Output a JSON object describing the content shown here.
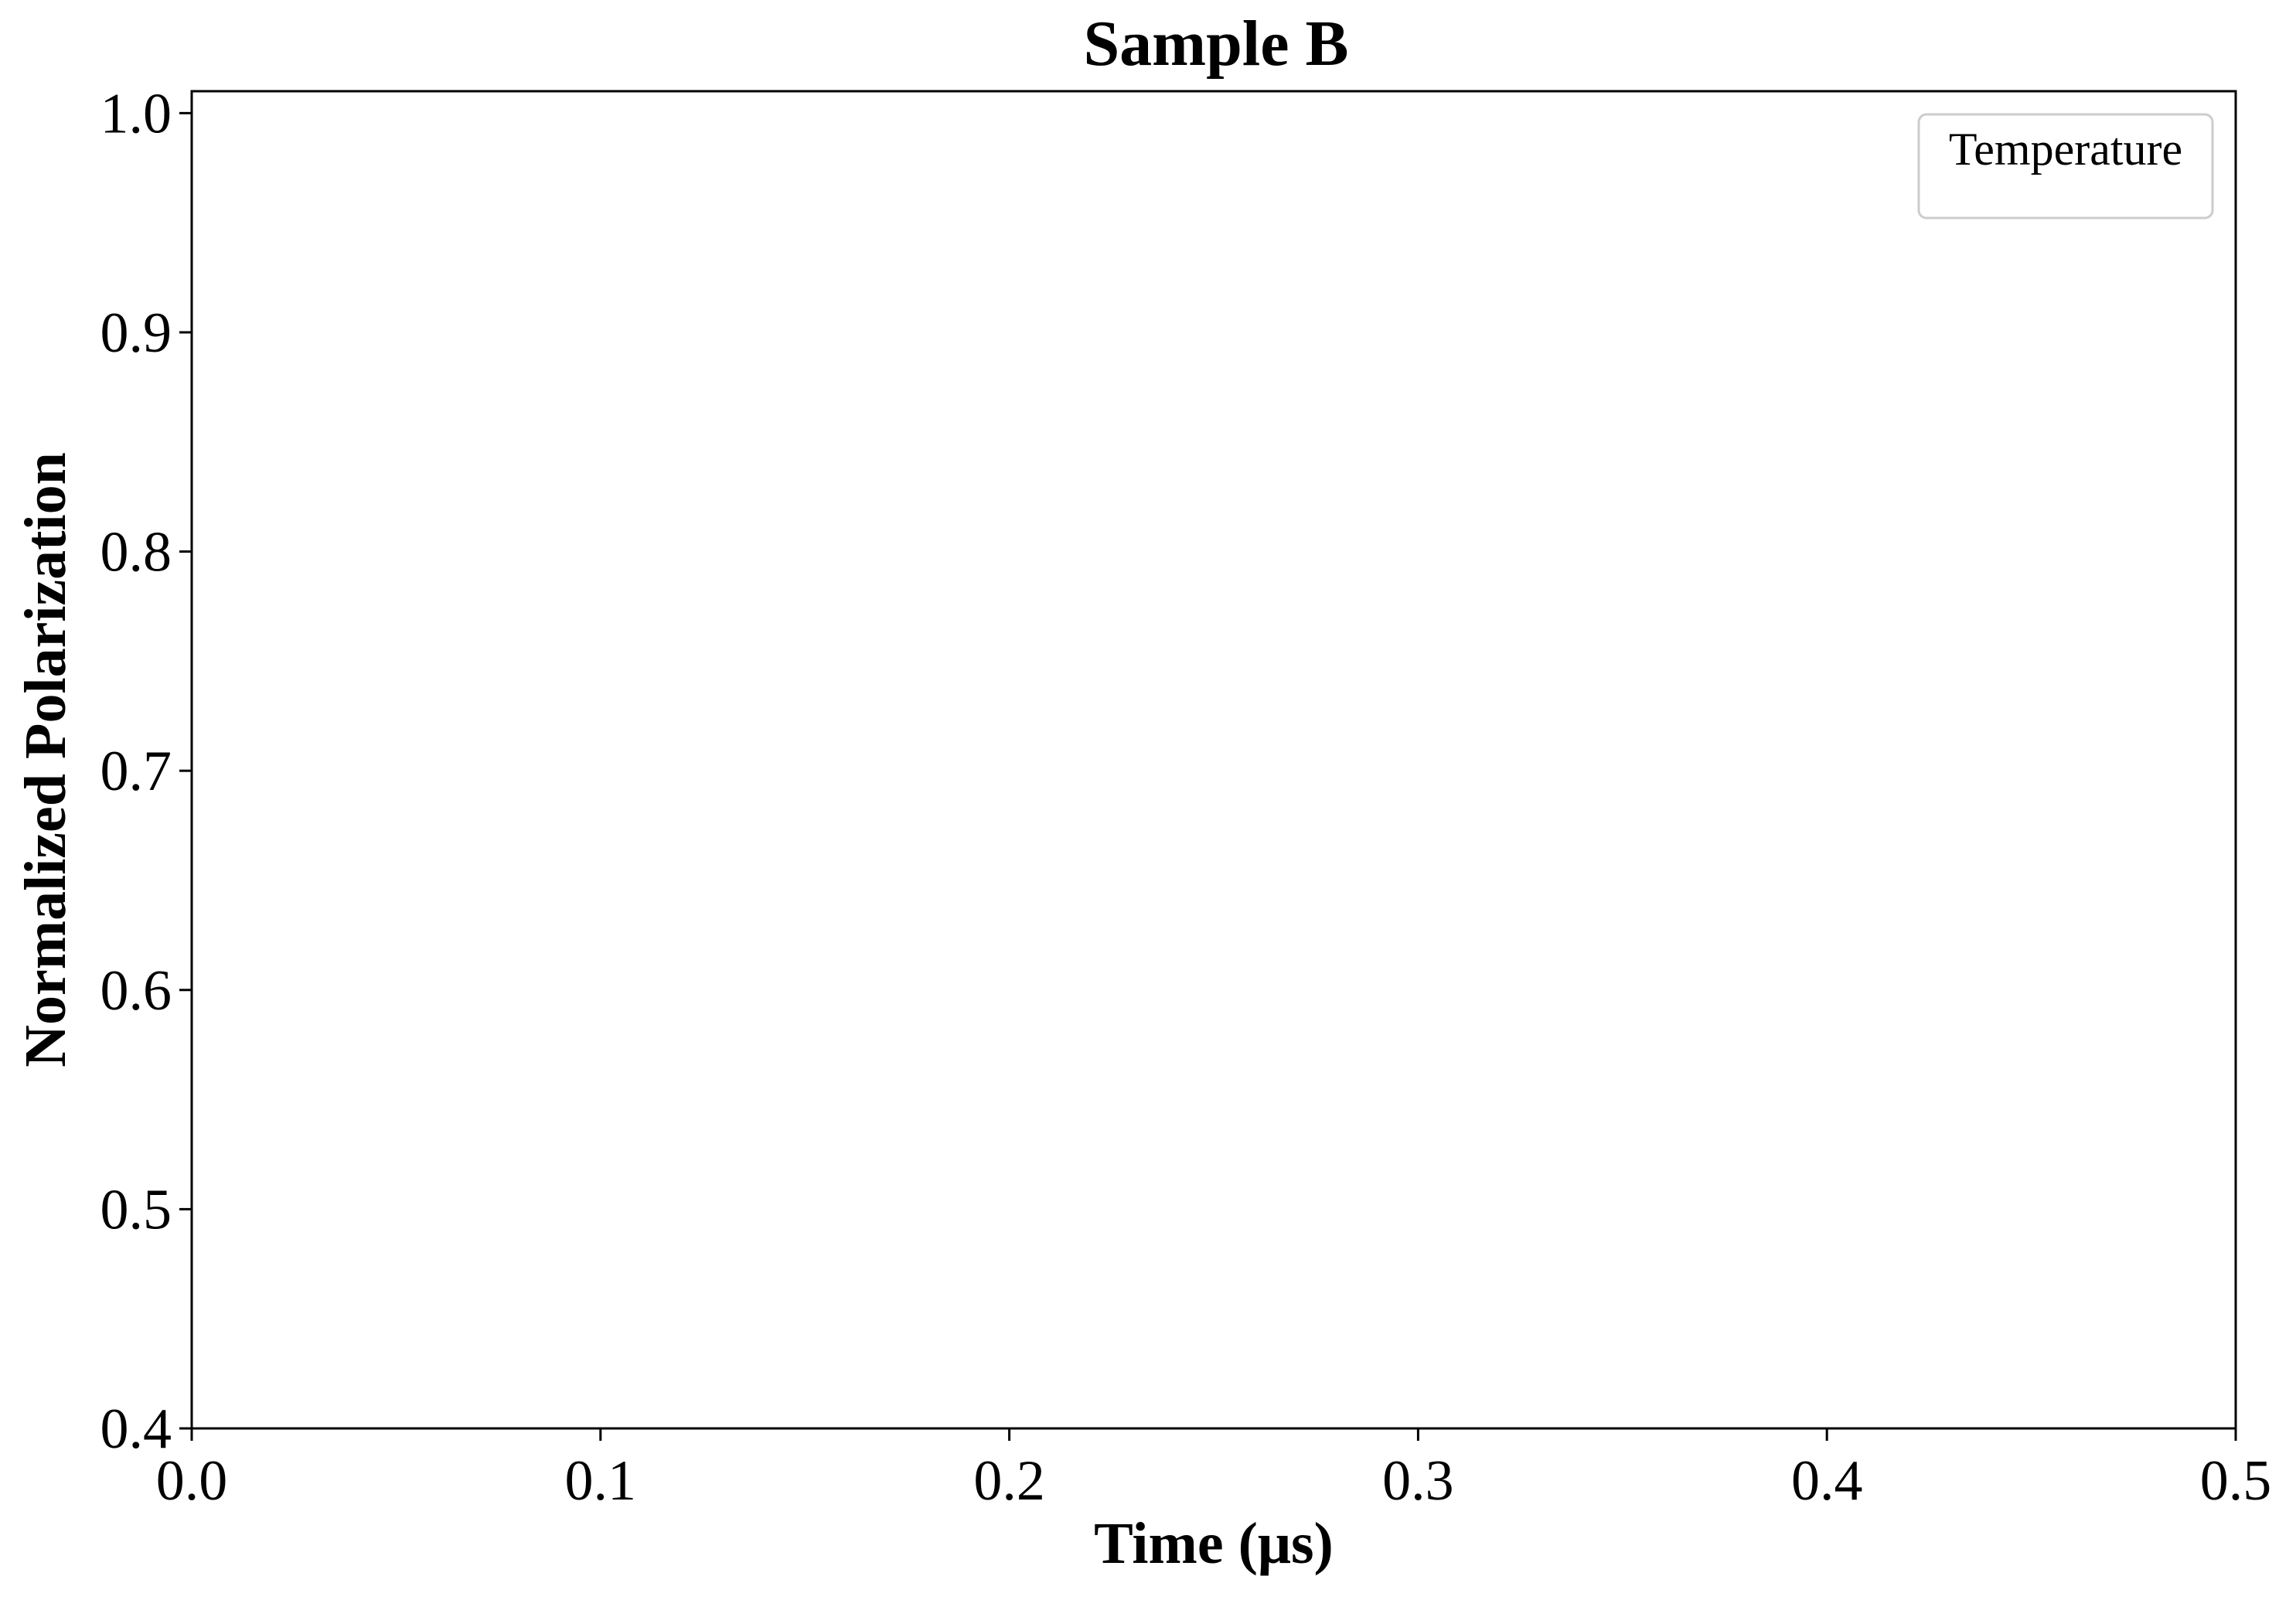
{
  "chart_data": {
    "type": "line",
    "title": "Sample B",
    "xlabel": "Time (μs)",
    "ylabel": "Normalized Polarization",
    "xlim": [
      0.0,
      0.5
    ],
    "ylim": [
      0.4,
      1.01
    ],
    "xticks": [
      0.0,
      0.1,
      0.2,
      0.3,
      0.4,
      0.5
    ],
    "xtick_labels": [
      "0.0",
      "0.1",
      "0.2",
      "0.3",
      "0.4",
      "0.5"
    ],
    "yticks": [
      0.4,
      0.5,
      0.6,
      0.7,
      0.8,
      0.9,
      1.0
    ],
    "ytick_labels": [
      "0.4",
      "0.5",
      "0.6",
      "0.7",
      "0.8",
      "0.9",
      "1.0"
    ],
    "grid": false,
    "legend": {
      "title": "Temperature",
      "placement": "top-right",
      "entries": []
    },
    "series": []
  },
  "colors": {
    "axis": "#000000",
    "legend_border": "#cccccc",
    "background": "#ffffff"
  }
}
